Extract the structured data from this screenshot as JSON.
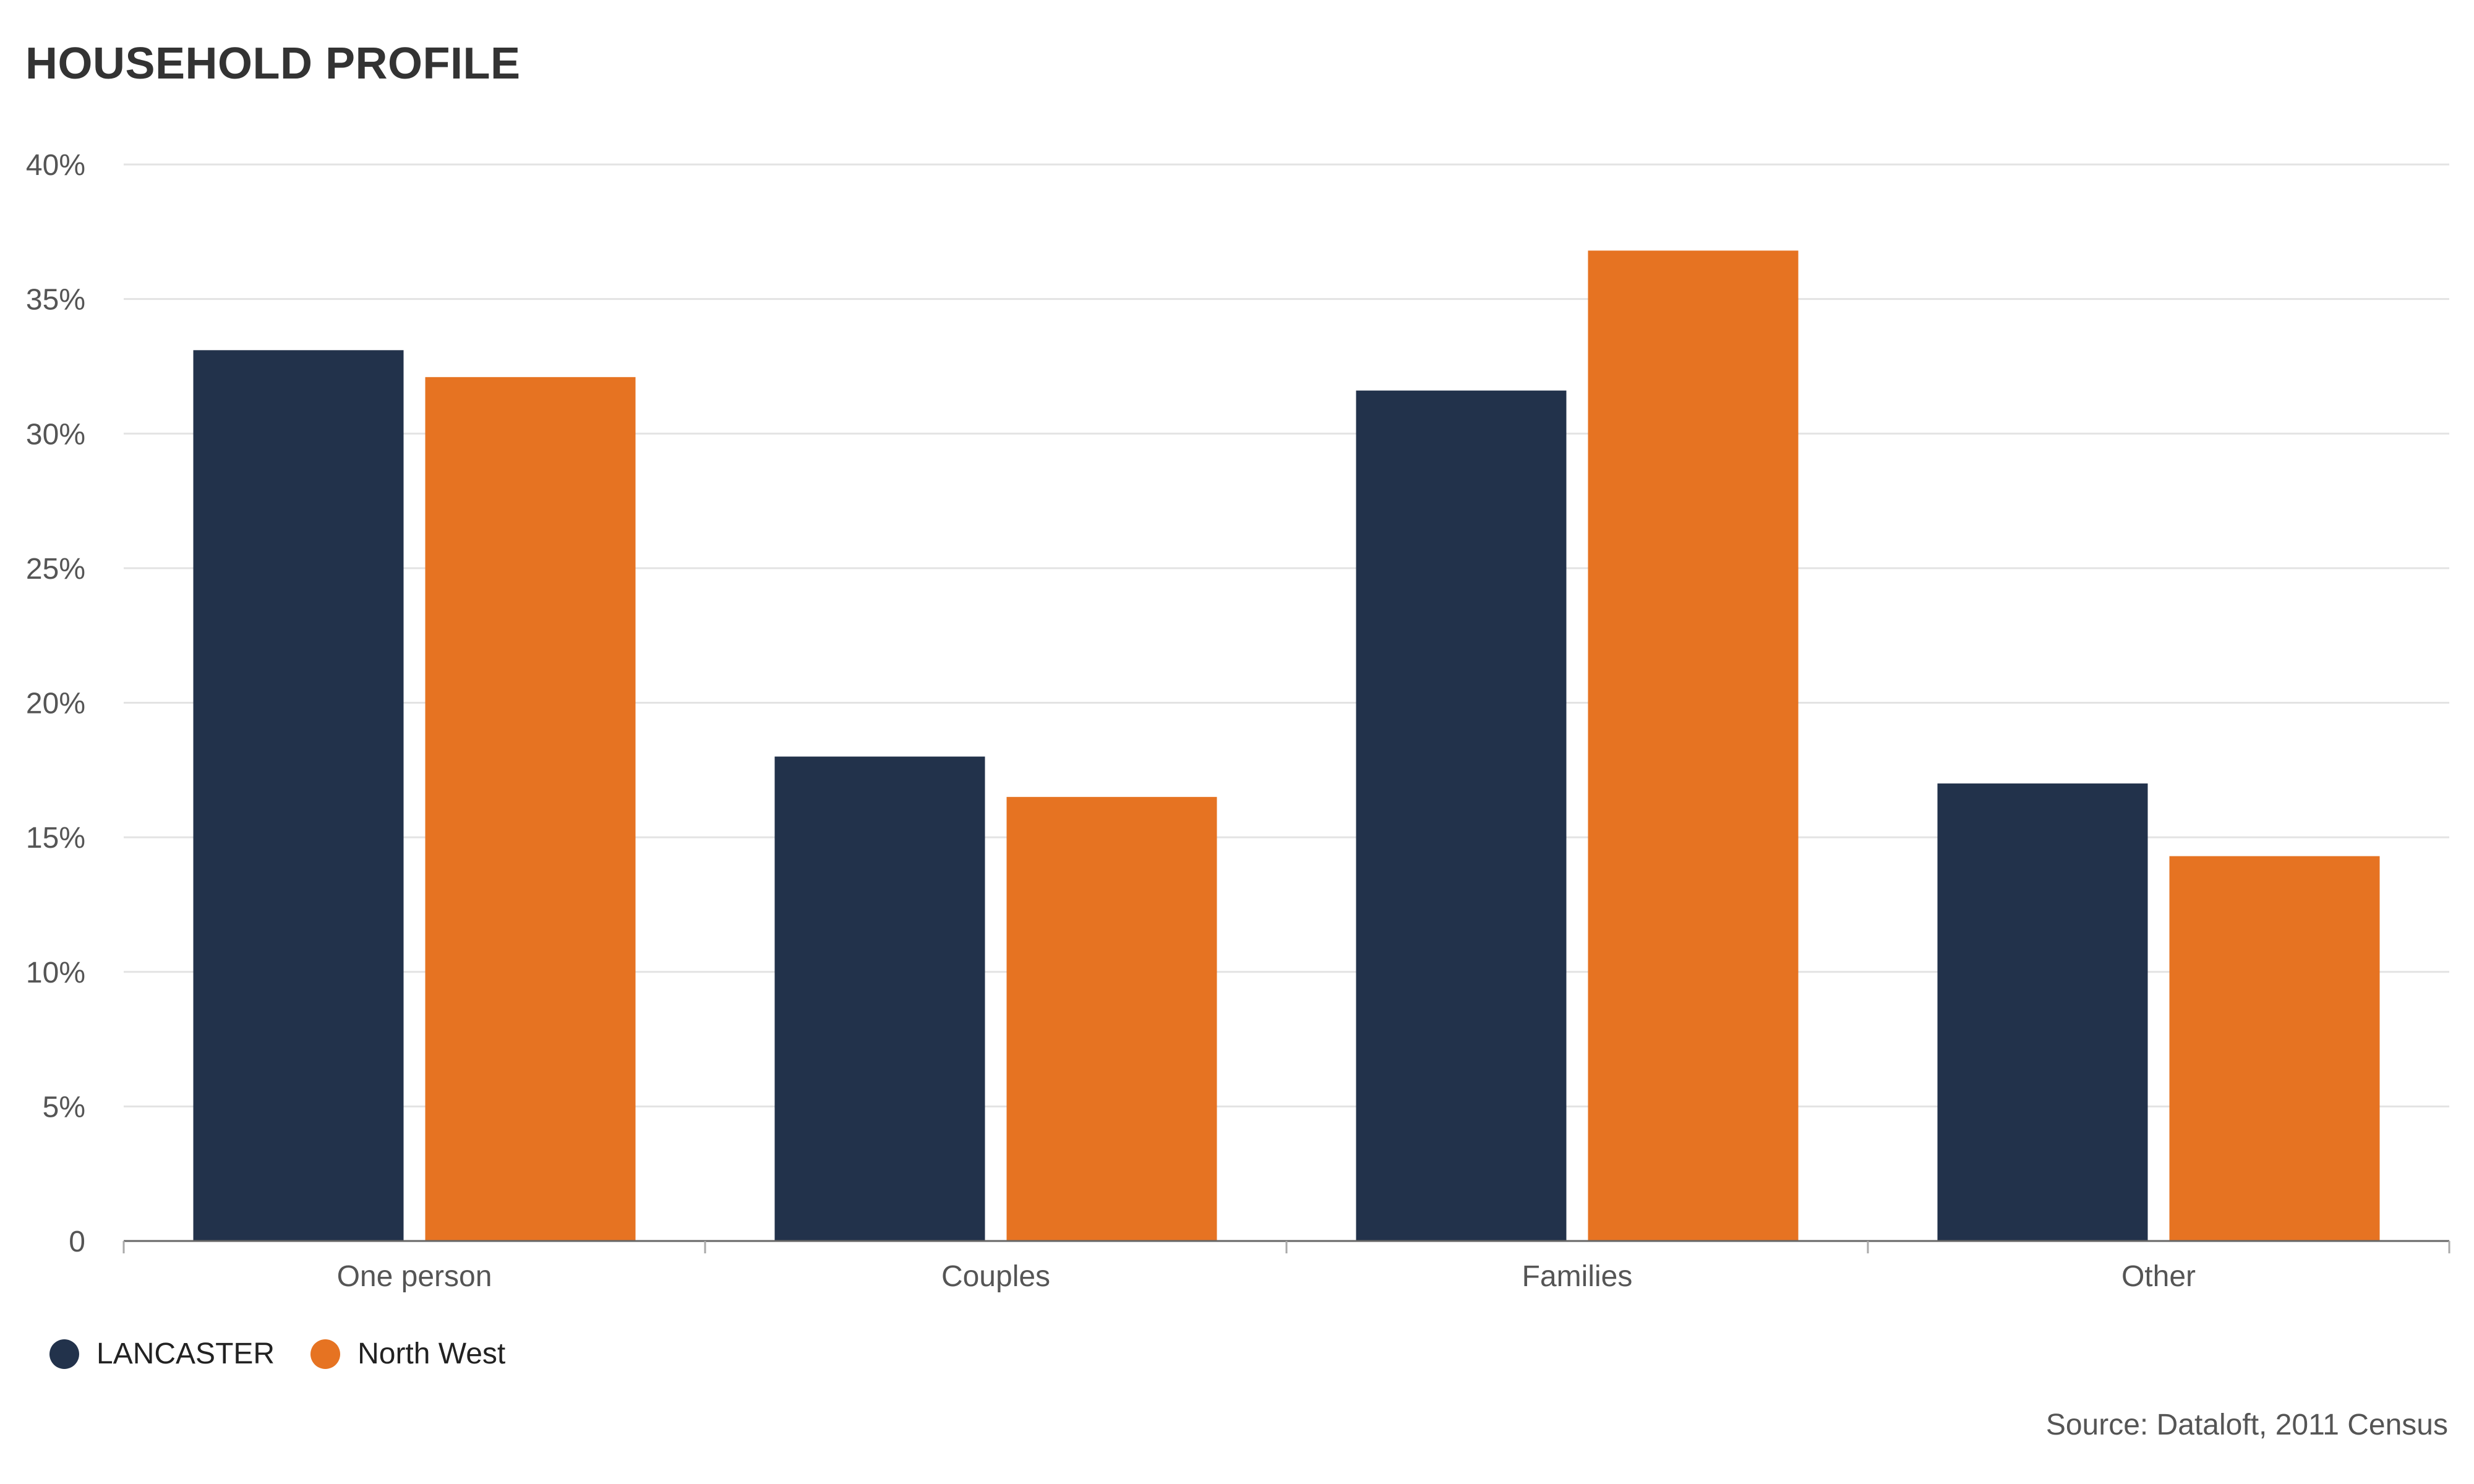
{
  "chart_data": {
    "type": "bar",
    "title": "HOUSEHOLD PROFILE",
    "categories": [
      "One person",
      "Couples",
      "Families",
      "Other"
    ],
    "series": [
      {
        "name": "LANCASTER",
        "color": "#22324b",
        "values": [
          33.1,
          18.0,
          31.6,
          17.0
        ]
      },
      {
        "name": "North West",
        "color": "#e67322",
        "values": [
          32.1,
          16.5,
          36.8,
          14.3
        ]
      }
    ],
    "y_ticks": [
      {
        "value": 0,
        "label": "0"
      },
      {
        "value": 5,
        "label": "5%"
      },
      {
        "value": 10,
        "label": "10%"
      },
      {
        "value": 15,
        "label": "15%"
      },
      {
        "value": 20,
        "label": "20%"
      },
      {
        "value": 25,
        "label": "25%"
      },
      {
        "value": 30,
        "label": "30%"
      },
      {
        "value": 35,
        "label": "35%"
      },
      {
        "value": 40,
        "label": "40%"
      }
    ],
    "ylim": [
      0,
      40
    ],
    "xlabel": "",
    "ylabel": "",
    "grid": true,
    "legend_position": "bottom-left",
    "source": "Source: Dataloft, 2011 Census"
  }
}
